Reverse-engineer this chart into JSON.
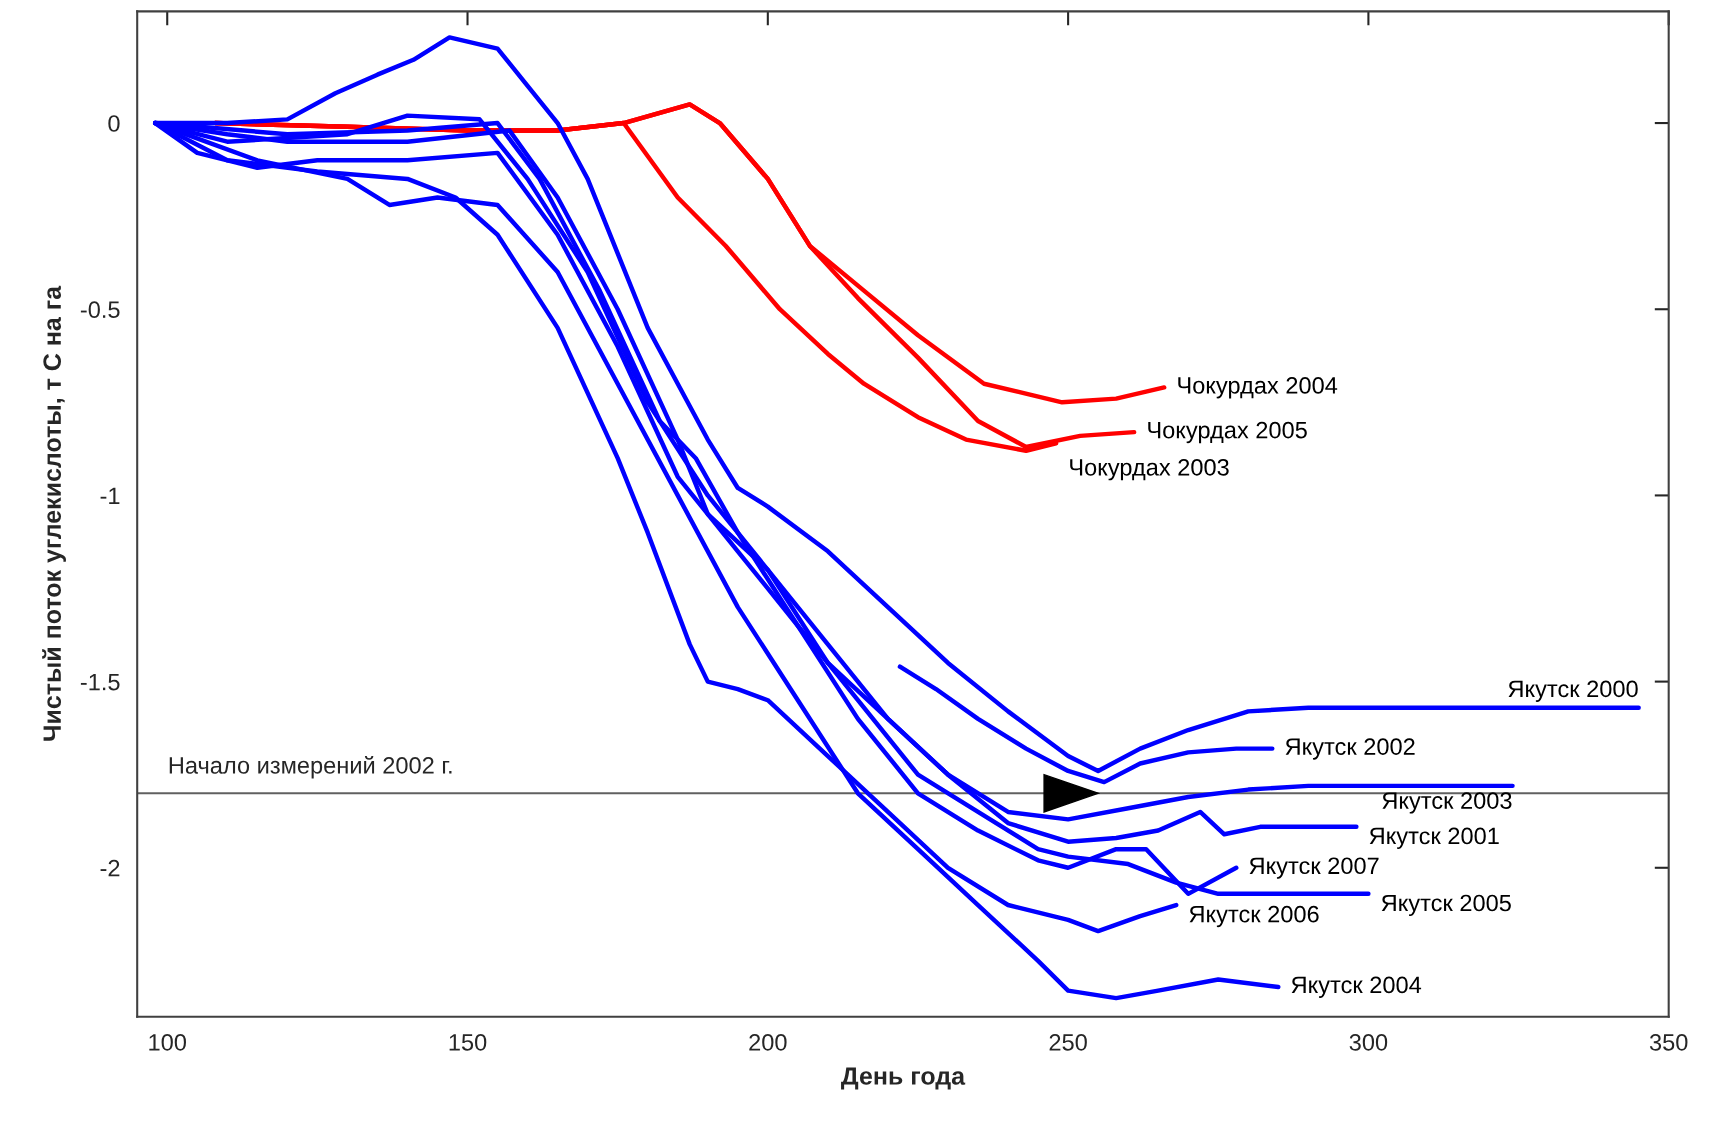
{
  "chart_data": {
    "type": "line",
    "xlabel": "День года",
    "ylabel": "Чистый поток углекислоты, т С на га",
    "xlim": [
      95,
      350
    ],
    "ylim": [
      -2.4,
      0.3
    ],
    "xticks": [
      100,
      150,
      200,
      250,
      300,
      350
    ],
    "yticks": [
      0,
      {
        "value": -0.5,
        "label": "-0.5"
      },
      {
        "value": -1,
        "label": "-1"
      },
      {
        "value": -1.5,
        "label": "-1.5"
      },
      {
        "value": -2,
        "label": "-2"
      }
    ],
    "grid": false,
    "legend": false,
    "marker": "none",
    "line_style": "solid",
    "ref_lines": [
      {
        "axis": "y",
        "value": -1.8,
        "label": "Начало измерений 2002 г.",
        "color": "#606060"
      }
    ],
    "series": [
      {
        "name": "Чокурдах 2004",
        "color": "#ff0000",
        "x": [
          108,
          130,
          150,
          165,
          176,
          187,
          192,
          200,
          207,
          216,
          225,
          236,
          249,
          258,
          266
        ],
        "values": [
          0,
          -0.01,
          -0.02,
          -0.02,
          0.0,
          0.05,
          0.0,
          -0.15,
          -0.33,
          -0.45,
          -0.57,
          -0.7,
          -0.75,
          -0.74,
          -0.71
        ]
      },
      {
        "name": "Чокурдах 2005",
        "color": "#ff0000",
        "x": [
          108,
          130,
          150,
          165,
          176,
          187,
          192,
          200,
          207,
          215,
          225,
          235,
          243,
          252,
          261
        ],
        "values": [
          0,
          -0.01,
          -0.02,
          -0.02,
          0.0,
          0.05,
          0.0,
          -0.15,
          -0.33,
          -0.47,
          -0.63,
          -0.8,
          -0.87,
          -0.84,
          -0.83
        ]
      },
      {
        "name": "Чокурдах 2003",
        "color": "#ff0000",
        "x": [
          108,
          130,
          150,
          165,
          176,
          185,
          193,
          202,
          210,
          216,
          225,
          233,
          243,
          248
        ],
        "values": [
          0,
          -0.01,
          -0.02,
          -0.02,
          0.0,
          -0.2,
          -0.33,
          -0.5,
          -0.62,
          -0.7,
          -0.79,
          -0.85,
          -0.88,
          -0.86
        ]
      },
      {
        "name": "Якутск 2000",
        "color": "#0000ff",
        "x": [
          98,
          110,
          120,
          128,
          135,
          141,
          147,
          155,
          160,
          165,
          170,
          175,
          180,
          185,
          190,
          195,
          200,
          210,
          220,
          230,
          240,
          250,
          255,
          262,
          270,
          280,
          290,
          345
        ],
        "values": [
          0,
          0.0,
          0.01,
          0.08,
          0.13,
          0.17,
          0.23,
          0.2,
          0.1,
          0.0,
          -0.15,
          -0.35,
          -0.55,
          -0.7,
          -0.85,
          -0.98,
          -1.03,
          -1.15,
          -1.3,
          -1.45,
          -1.58,
          -1.7,
          -1.74,
          -1.68,
          -1.63,
          -1.58,
          -1.57,
          -1.57
        ]
      },
      {
        "name": "Якутск 2002",
        "color": "#0000ff",
        "x": [
          222,
          228,
          235,
          243,
          250,
          256,
          262,
          270,
          278,
          284
        ],
        "values": [
          -1.46,
          -1.52,
          -1.6,
          -1.68,
          -1.74,
          -1.77,
          -1.72,
          -1.69,
          -1.68,
          -1.68
        ]
      },
      {
        "name": "Якутск 2003",
        "color": "#0000ff",
        "x": [
          98,
          110,
          120,
          140,
          157,
          165,
          175,
          185,
          190,
          200,
          210,
          220,
          230,
          240,
          250,
          260,
          270,
          280,
          290,
          324
        ],
        "values": [
          0,
          -0.03,
          -0.05,
          -0.05,
          -0.02,
          -0.2,
          -0.5,
          -0.85,
          -1.05,
          -1.2,
          -1.4,
          -1.6,
          -1.75,
          -1.85,
          -1.87,
          -1.84,
          -1.81,
          -1.79,
          -1.78,
          -1.78
        ]
      },
      {
        "name": "Якутск 2001",
        "color": "#0000ff",
        "x": [
          98,
          110,
          130,
          140,
          152,
          160,
          170,
          180,
          190,
          200,
          210,
          220,
          230,
          240,
          250,
          258,
          265,
          272,
          276,
          282,
          298
        ],
        "values": [
          0,
          -0.05,
          -0.03,
          0.02,
          0.01,
          -0.15,
          -0.4,
          -0.75,
          -1.0,
          -1.2,
          -1.45,
          -1.6,
          -1.75,
          -1.88,
          -1.93,
          -1.92,
          -1.9,
          -1.85,
          -1.91,
          -1.89,
          -1.89
        ]
      },
      {
        "name": "Якутск 2007",
        "color": "#0000ff",
        "x": [
          98,
          120,
          140,
          155,
          162,
          172,
          182,
          188,
          195,
          205,
          215,
          225,
          235,
          245,
          250,
          258,
          263,
          270,
          278
        ],
        "values": [
          0,
          -0.03,
          -0.02,
          0.0,
          -0.15,
          -0.45,
          -0.8,
          -0.9,
          -1.1,
          -1.35,
          -1.6,
          -1.8,
          -1.9,
          -1.98,
          -2.0,
          -1.95,
          -1.95,
          -2.07,
          -2.0
        ]
      },
      {
        "name": "Якутск 2006",
        "color": "#0000ff",
        "x": [
          98,
          110,
          125,
          140,
          148,
          155,
          165,
          175,
          180,
          187,
          190,
          195,
          200,
          210,
          220,
          230,
          240,
          250,
          255,
          262,
          268
        ],
        "values": [
          0,
          -0.1,
          -0.13,
          -0.15,
          -0.2,
          -0.3,
          -0.55,
          -0.9,
          -1.1,
          -1.4,
          -1.5,
          -1.52,
          -1.55,
          -1.7,
          -1.85,
          -2.0,
          -2.1,
          -2.14,
          -2.17,
          -2.13,
          -2.1
        ]
      },
      {
        "name": "Якутск 2005",
        "color": "#0000ff",
        "x": [
          98,
          105,
          115,
          125,
          140,
          155,
          165,
          175,
          185,
          195,
          205,
          215,
          225,
          235,
          245,
          250,
          260,
          268,
          275,
          285,
          300
        ],
        "values": [
          0,
          -0.08,
          -0.12,
          -0.1,
          -0.1,
          -0.08,
          -0.3,
          -0.6,
          -0.95,
          -1.15,
          -1.35,
          -1.55,
          -1.75,
          -1.85,
          -1.95,
          -1.97,
          -1.99,
          -2.04,
          -2.07,
          -2.07,
          -2.07
        ]
      },
      {
        "name": "Якутск 2004",
        "color": "#0000ff",
        "x": [
          98,
          115,
          130,
          137,
          145,
          155,
          165,
          175,
          185,
          195,
          205,
          215,
          225,
          235,
          245,
          250,
          258,
          265,
          275,
          285
        ],
        "values": [
          0,
          -0.1,
          -0.15,
          -0.22,
          -0.2,
          -0.22,
          -0.4,
          -0.7,
          -1.0,
          -1.3,
          -1.55,
          -1.8,
          -1.95,
          -2.1,
          -2.25,
          -2.33,
          -2.35,
          -2.33,
          -2.3,
          -2.32
        ]
      }
    ]
  }
}
